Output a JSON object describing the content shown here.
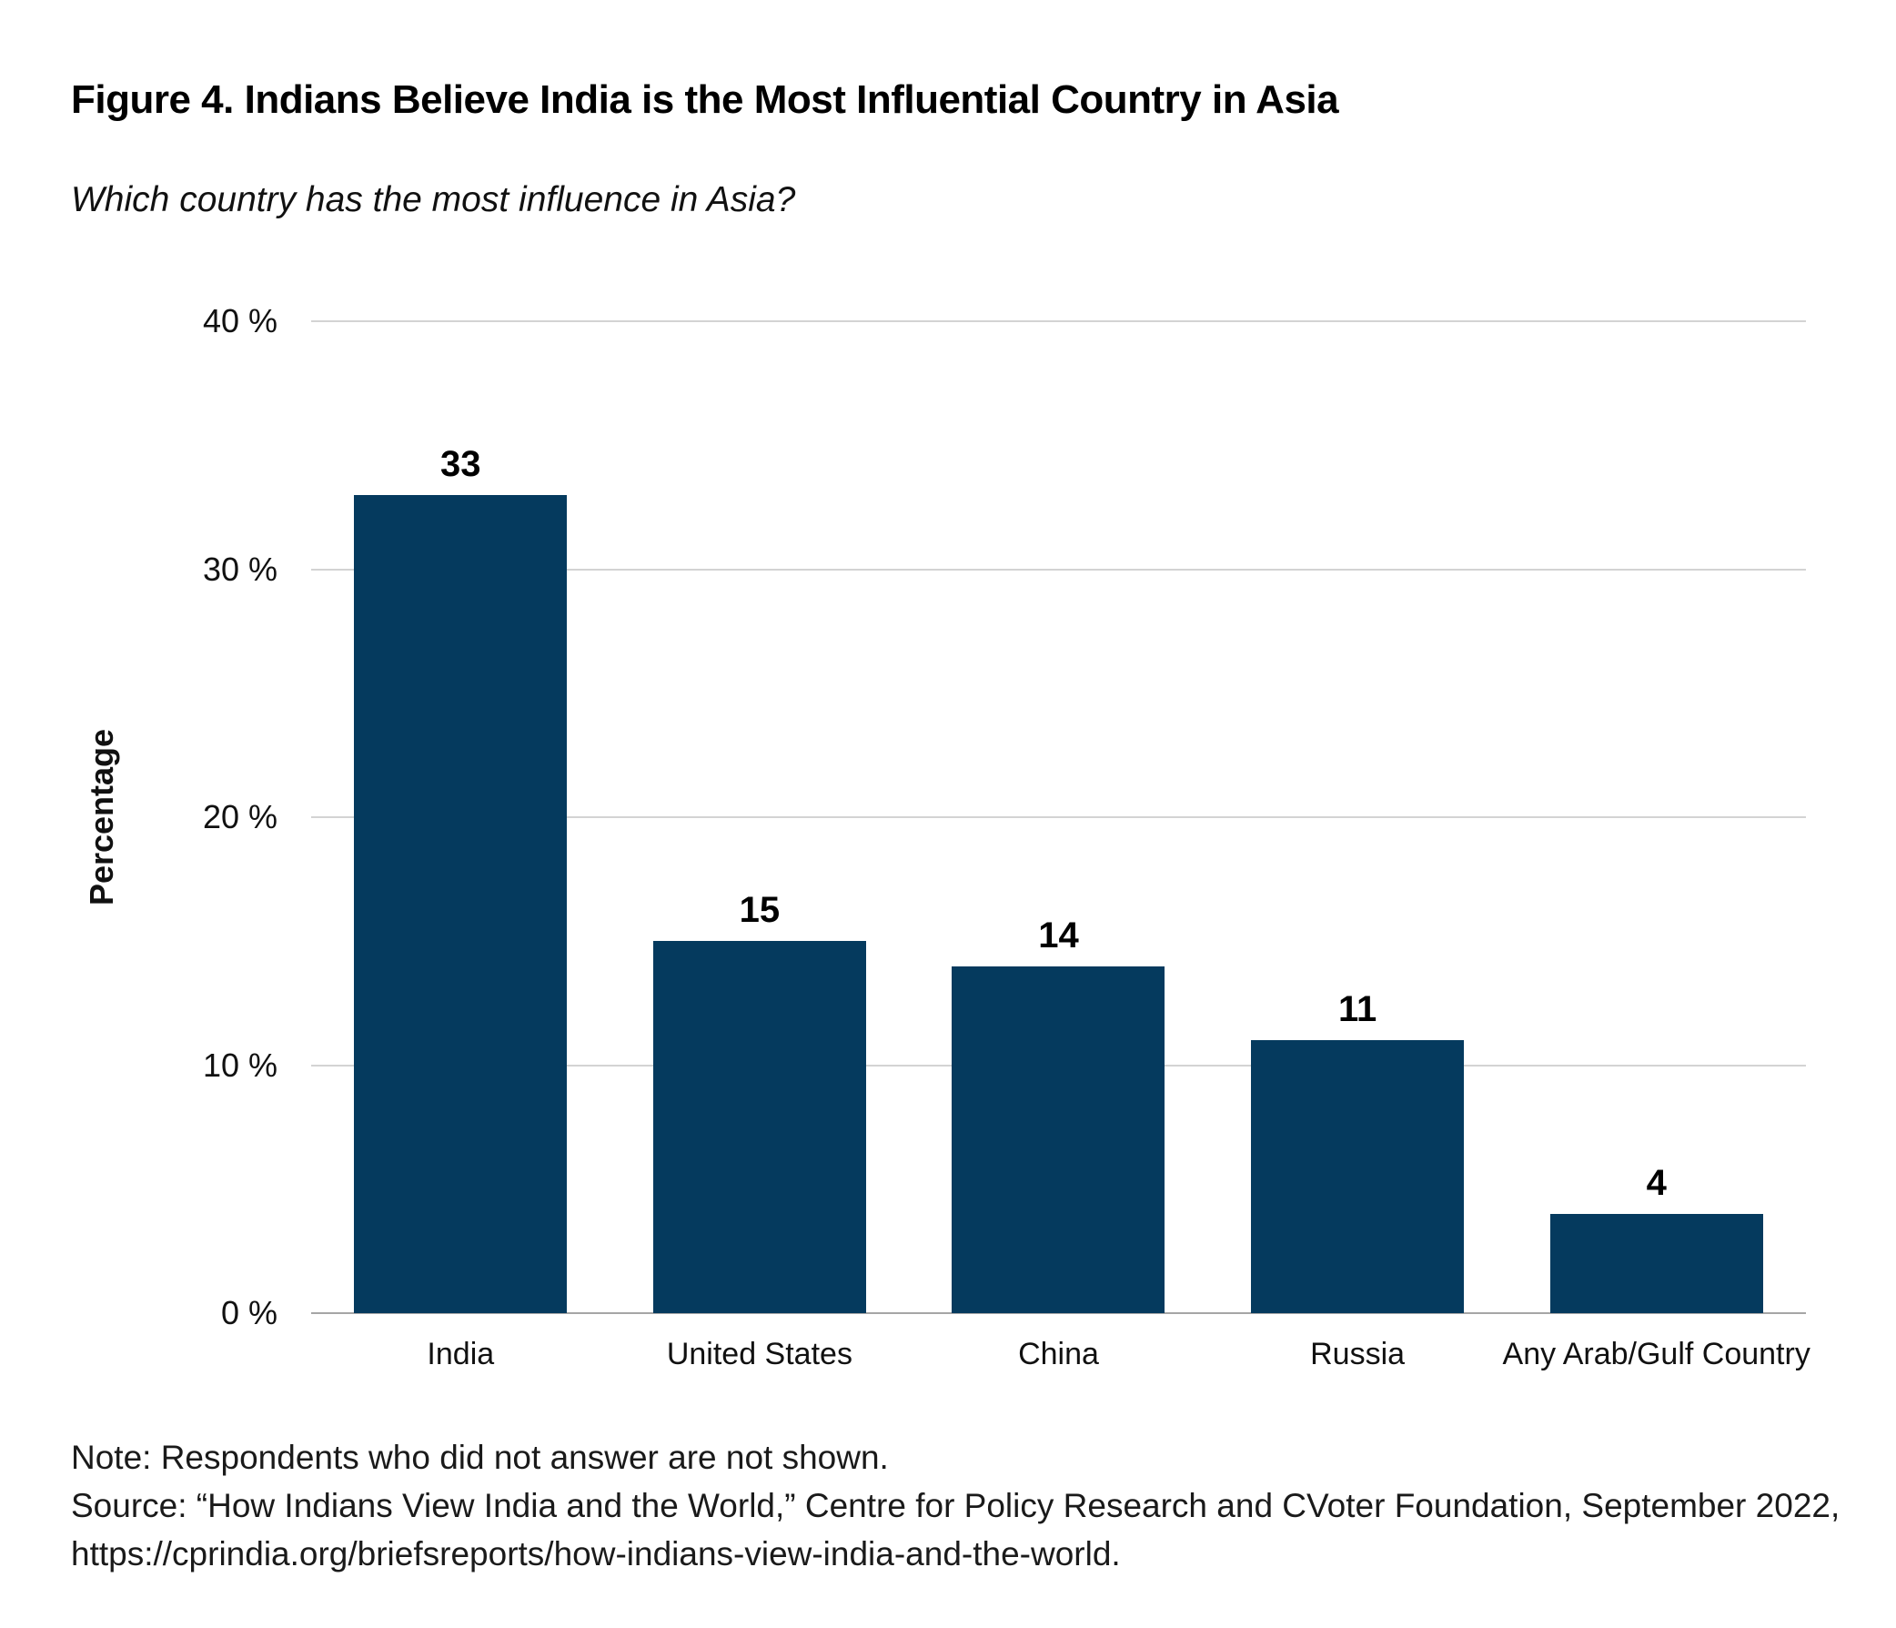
{
  "figure": {
    "title": "Figure 4. Indians Believe India is the Most Influential Country in Asia",
    "subtitle": "Which country has the most influence in Asia?",
    "note": "Note: Respondents who did not answer are not shown.",
    "source_line1": "Source: “How Indians View India and the World,” Centre for Policy Research and CVoter Foundation, September 2022,",
    "source_line2": "https://cprindia.org/briefsreports/how-indians-view-india-and-the-world."
  },
  "chart_data": {
    "type": "bar",
    "title": "Figure 4. Indians Believe India is the Most Influential Country in Asia",
    "subtitle": "Which country has the most influence in Asia?",
    "categories": [
      "India",
      "United States",
      "China",
      "Russia",
      "Any Arab/Gulf Country"
    ],
    "values": [
      33,
      15,
      14,
      11,
      4
    ],
    "value_labels": [
      "33",
      "15",
      "14",
      "11",
      "4"
    ],
    "xlabel": "",
    "ylabel": "Percentage",
    "ylim": [
      0,
      40
    ],
    "yticks": [
      0,
      10,
      20,
      30,
      40
    ],
    "ytick_labels": [
      "0 %",
      "10 %",
      "20 %",
      "30 %",
      "40 %"
    ],
    "grid": "horizontal",
    "legend": "none",
    "bar_color": "#053a5e"
  },
  "colors": {
    "bar": "#053a5e",
    "gridline": "#d3d3d3",
    "axis_line": "#a6a6a6",
    "text": "#111111",
    "background": "#ffffff"
  }
}
